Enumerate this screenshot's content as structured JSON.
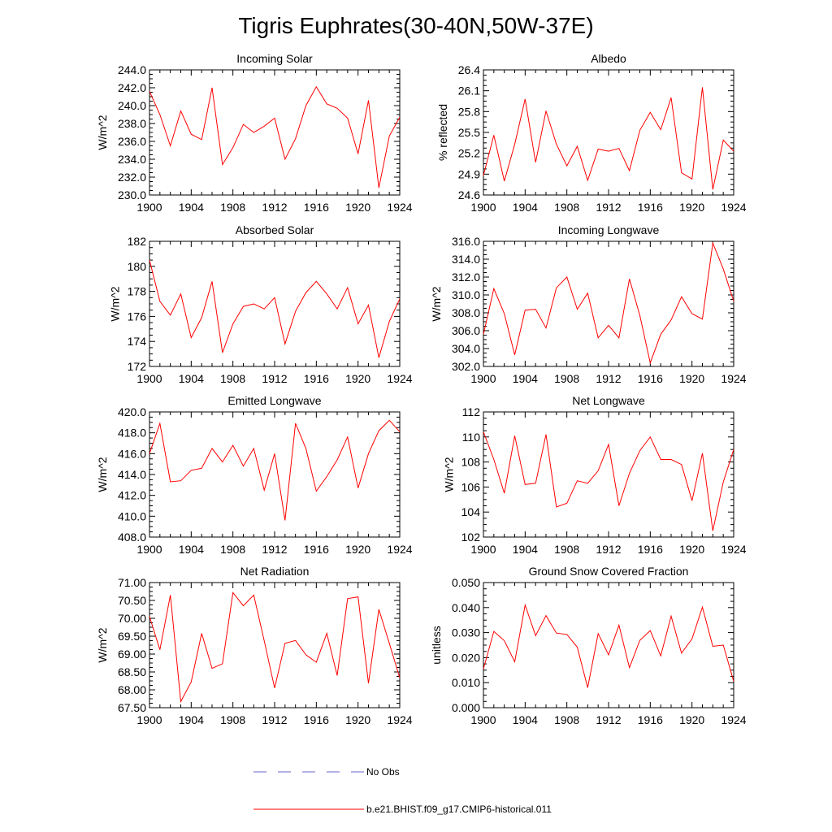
{
  "title": "Tigris Euphrates(30-40N,50W-37E)",
  "colors": {
    "model_line": "#ff0000",
    "obs_line": "#6666cc",
    "axis": "#000000"
  },
  "legend": {
    "obs_label": "No Obs",
    "model_label": "b.e21.BHIST.f09_g17.CMIP6-historical.011"
  },
  "chart_data": [
    {
      "type": "line",
      "title": "Incoming Solar",
      "ylabel": "W/m^2",
      "xlim": [
        1900,
        1924
      ],
      "xticks": [
        "1900",
        "1904",
        "1908",
        "1912",
        "1916",
        "1920",
        "1924"
      ],
      "ylim": [
        230,
        244
      ],
      "yticks": [
        "230.0",
        "232.0",
        "234.0",
        "236.0",
        "238.0",
        "240.0",
        "242.0",
        "244.0"
      ],
      "x": [
        1900,
        1901,
        1902,
        1903,
        1904,
        1905,
        1906,
        1907,
        1908,
        1909,
        1910,
        1911,
        1912,
        1913,
        1914,
        1915,
        1916,
        1917,
        1918,
        1919,
        1920,
        1921,
        1922,
        1923,
        1924
      ],
      "series": [
        {
          "values": [
            241.6,
            239.0,
            235.5,
            239.4,
            236.8,
            236.2,
            242.0,
            233.4,
            235.3,
            237.9,
            237.0,
            237.7,
            238.6,
            234.0,
            236.3,
            240.0,
            242.1,
            240.2,
            239.7,
            238.6,
            234.6,
            240.6,
            230.8,
            236.6,
            238.7
          ]
        }
      ]
    },
    {
      "type": "line",
      "title": "Albedo",
      "ylabel": "% reflected",
      "xlim": [
        1900,
        1924
      ],
      "xticks": [
        "1900",
        "1904",
        "1908",
        "1912",
        "1916",
        "1920",
        "1924"
      ],
      "ylim": [
        24.6,
        26.4
      ],
      "yticks": [
        "24.6",
        "24.9",
        "25.2",
        "25.5",
        "25.8",
        "26.1",
        "26.4"
      ],
      "x": [
        1900,
        1901,
        1902,
        1903,
        1904,
        1905,
        1906,
        1907,
        1908,
        1909,
        1910,
        1911,
        1912,
        1913,
        1914,
        1915,
        1916,
        1917,
        1918,
        1919,
        1920,
        1921,
        1922,
        1923,
        1924
      ],
      "series": [
        {
          "values": [
            24.88,
            25.46,
            24.8,
            25.33,
            25.98,
            25.07,
            25.81,
            25.33,
            25.02,
            25.3,
            24.81,
            25.26,
            25.23,
            25.27,
            24.95,
            25.53,
            25.79,
            25.54,
            26.0,
            24.92,
            24.83,
            26.15,
            24.68,
            25.39,
            25.23
          ]
        }
      ]
    },
    {
      "type": "line",
      "title": "Absorbed Solar",
      "ylabel": "W/m^2",
      "xlim": [
        1900,
        1924
      ],
      "xticks": [
        "1900",
        "1904",
        "1908",
        "1912",
        "1916",
        "1920",
        "1924"
      ],
      "ylim": [
        172,
        182
      ],
      "yticks": [
        "172",
        "174",
        "176",
        "178",
        "180",
        "182"
      ],
      "x": [
        1900,
        1901,
        1902,
        1903,
        1904,
        1905,
        1906,
        1907,
        1908,
        1909,
        1910,
        1911,
        1912,
        1913,
        1914,
        1915,
        1916,
        1917,
        1918,
        1919,
        1920,
        1921,
        1922,
        1923,
        1924
      ],
      "series": [
        {
          "values": [
            180.5,
            177.2,
            176.1,
            177.8,
            174.3,
            175.9,
            178.8,
            173.1,
            175.4,
            176.8,
            177.0,
            176.6,
            177.5,
            173.8,
            176.4,
            177.9,
            178.8,
            177.8,
            176.6,
            178.3,
            175.4,
            176.9,
            172.7,
            175.6,
            177.4
          ]
        }
      ]
    },
    {
      "type": "line",
      "title": "Incoming Longwave",
      "ylabel": "W/m^2",
      "xlim": [
        1900,
        1924
      ],
      "xticks": [
        "1900",
        "1904",
        "1908",
        "1912",
        "1916",
        "1920",
        "1924"
      ],
      "ylim": [
        302,
        316
      ],
      "yticks": [
        "302.0",
        "304.0",
        "306.0",
        "308.0",
        "310.0",
        "312.0",
        "314.0",
        "316.0"
      ],
      "x": [
        1900,
        1901,
        1902,
        1903,
        1904,
        1905,
        1906,
        1907,
        1908,
        1909,
        1910,
        1911,
        1912,
        1913,
        1914,
        1915,
        1916,
        1917,
        1918,
        1919,
        1920,
        1921,
        1922,
        1923,
        1924
      ],
      "series": [
        {
          "values": [
            305.6,
            310.7,
            307.9,
            303.3,
            308.3,
            308.4,
            306.3,
            310.8,
            312.0,
            308.4,
            310.2,
            305.2,
            306.6,
            305.2,
            311.8,
            307.7,
            302.4,
            305.6,
            307.2,
            309.8,
            307.9,
            307.3,
            315.8,
            312.9,
            309.3
          ]
        }
      ]
    },
    {
      "type": "line",
      "title": "Emitted Longwave",
      "ylabel": "W/m^2",
      "xlim": [
        1900,
        1924
      ],
      "xticks": [
        "1900",
        "1904",
        "1908",
        "1912",
        "1916",
        "1920",
        "1924"
      ],
      "ylim": [
        408,
        420
      ],
      "yticks": [
        "408.0",
        "410.0",
        "412.0",
        "414.0",
        "416.0",
        "418.0",
        "420.0"
      ],
      "x": [
        1900,
        1901,
        1902,
        1903,
        1904,
        1905,
        1906,
        1907,
        1908,
        1909,
        1910,
        1911,
        1912,
        1913,
        1914,
        1915,
        1916,
        1917,
        1918,
        1919,
        1920,
        1921,
        1922,
        1923,
        1924
      ],
      "series": [
        {
          "values": [
            416.0,
            418.9,
            413.3,
            413.4,
            414.4,
            414.6,
            416.5,
            415.2,
            416.8,
            414.8,
            416.5,
            412.5,
            416.0,
            409.6,
            418.9,
            416.5,
            412.4,
            413.8,
            415.4,
            417.6,
            412.7,
            416.0,
            418.2,
            419.2,
            418.1
          ]
        }
      ]
    },
    {
      "type": "line",
      "title": "Net Longwave",
      "ylabel": "W/m^2",
      "xlim": [
        1900,
        1924
      ],
      "xticks": [
        "1900",
        "1904",
        "1908",
        "1912",
        "1916",
        "1920",
        "1924"
      ],
      "ylim": [
        102,
        112
      ],
      "yticks": [
        "102",
        "104",
        "106",
        "108",
        "110",
        "112"
      ],
      "x": [
        1900,
        1901,
        1902,
        1903,
        1904,
        1905,
        1906,
        1907,
        1908,
        1909,
        1910,
        1911,
        1912,
        1913,
        1914,
        1915,
        1916,
        1917,
        1918,
        1919,
        1920,
        1921,
        1922,
        1923,
        1924
      ],
      "series": [
        {
          "values": [
            110.4,
            108.2,
            105.5,
            110.1,
            106.2,
            106.3,
            110.2,
            104.4,
            104.7,
            106.5,
            106.3,
            107.3,
            109.4,
            104.5,
            107.1,
            108.9,
            110.0,
            108.2,
            108.2,
            107.8,
            104.9,
            108.7,
            102.5,
            106.4,
            109.0
          ]
        }
      ]
    },
    {
      "type": "line",
      "title": "Net Radiation",
      "ylabel": "W/m^2",
      "xlim": [
        1900,
        1924
      ],
      "xticks": [
        "1900",
        "1904",
        "1908",
        "1912",
        "1916",
        "1920",
        "1924"
      ],
      "ylim": [
        67.5,
        71.0
      ],
      "yticks": [
        "67.50",
        "68.00",
        "68.50",
        "69.00",
        "69.50",
        "70.00",
        "70.50",
        "71.00"
      ],
      "x": [
        1900,
        1901,
        1902,
        1903,
        1904,
        1905,
        1906,
        1907,
        1908,
        1909,
        1910,
        1911,
        1912,
        1913,
        1914,
        1915,
        1916,
        1917,
        1918,
        1919,
        1920,
        1921,
        1922,
        1923,
        1924
      ],
      "series": [
        {
          "values": [
            70.05,
            69.12,
            70.65,
            67.67,
            68.22,
            69.58,
            68.6,
            68.73,
            70.72,
            70.35,
            70.65,
            69.37,
            68.05,
            69.3,
            69.38,
            68.98,
            68.77,
            69.58,
            68.4,
            70.55,
            70.6,
            68.18,
            70.25,
            69.3,
            68.33
          ]
        }
      ]
    },
    {
      "type": "line",
      "title": "Ground Snow Covered Fraction",
      "ylabel": "unitless",
      "xlim": [
        1900,
        1924
      ],
      "xticks": [
        "1900",
        "1904",
        "1908",
        "1912",
        "1916",
        "1920",
        "1924"
      ],
      "ylim": [
        0.0,
        0.05
      ],
      "yticks": [
        "0.000",
        "0.010",
        "0.020",
        "0.030",
        "0.040",
        "0.050"
      ],
      "x": [
        1900,
        1901,
        1902,
        1903,
        1904,
        1905,
        1906,
        1907,
        1908,
        1909,
        1910,
        1911,
        1912,
        1913,
        1914,
        1915,
        1916,
        1917,
        1918,
        1919,
        1920,
        1921,
        1922,
        1923,
        1924
      ],
      "series": [
        {
          "values": [
            0.0155,
            0.0305,
            0.0268,
            0.0183,
            0.041,
            0.0288,
            0.0368,
            0.0298,
            0.0293,
            0.0242,
            0.008,
            0.0296,
            0.0211,
            0.033,
            0.016,
            0.0269,
            0.0308,
            0.0207,
            0.0366,
            0.0218,
            0.0275,
            0.0402,
            0.0245,
            0.025,
            0.0105
          ]
        }
      ]
    }
  ]
}
